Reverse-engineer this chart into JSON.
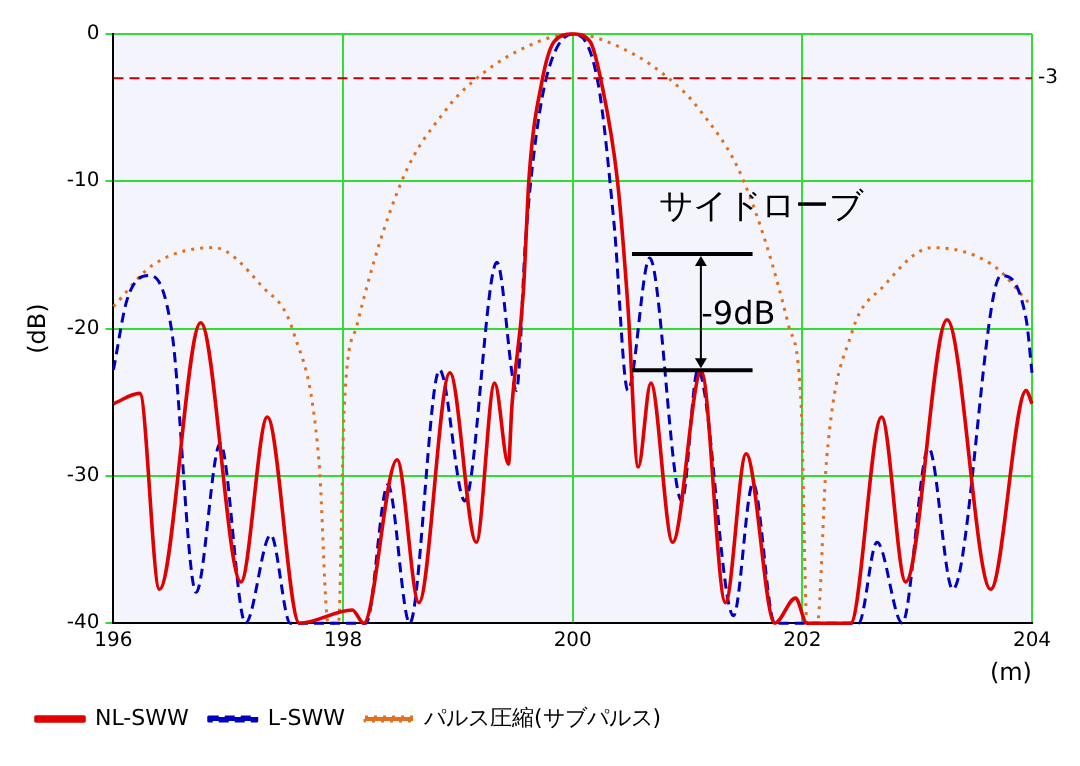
{
  "chart_data": {
    "type": "line",
    "ylabel": "(dB)",
    "xlabel": "(m)",
    "xlim": [
      196,
      204
    ],
    "ylim": [
      -40,
      0
    ],
    "xticks": [
      196,
      198,
      200,
      202,
      204
    ],
    "yticks": [
      0,
      -10,
      -20,
      -30,
      -40
    ],
    "grid": true,
    "legend": "bottom left",
    "marker": "none",
    "series": [
      {
        "name": "NL-SWW",
        "color": "#e00000",
        "line_style": "solid",
        "x": [
          196,
          196.23,
          196.4,
          196.76,
          197.11,
          197.34,
          197.62,
          198.08,
          198.18,
          198.47,
          198.66,
          198.93,
          199.16,
          199.32,
          199.44,
          199.47,
          199.57,
          199.62,
          199.73,
          199.84,
          200,
          200.15,
          200.25,
          200.39,
          200.48,
          200.57,
          200.68,
          200.87,
          201.12,
          201.33,
          201.51,
          201.76,
          201.94,
          202.04,
          202.42,
          202.69,
          202.9,
          203.26,
          203.64,
          203.95,
          204
        ],
        "values": [
          -25.1,
          -24.4,
          -37.7,
          -19.6,
          -37.2,
          -26,
          -40,
          -39.1,
          -40,
          -28.9,
          -38.6,
          -23,
          -34.5,
          -23.7,
          -29.2,
          -25.3,
          -17.5,
          -9.7,
          -3.3,
          -0.5,
          0,
          -0.5,
          -3.3,
          -10,
          -18.4,
          -29.4,
          -23.7,
          -34.5,
          -22.9,
          -38.6,
          -28.5,
          -40,
          -38.3,
          -40,
          -40,
          -26,
          -37.2,
          -19.4,
          -37.7,
          -24.2,
          -25.1
        ]
      },
      {
        "name": "L-SWW",
        "color": "#0000c0",
        "line_style": "dashed",
        "x": [
          196,
          196.12,
          196.32,
          196.51,
          196.72,
          196.93,
          197.15,
          197.37,
          197.54,
          198.2,
          198.39,
          198.58,
          198.84,
          199.06,
          199.34,
          199.51,
          199.59,
          199.68,
          199.79,
          200,
          200.22,
          200.36,
          200.48,
          200.67,
          200.95,
          201.09,
          201.4,
          201.57,
          201.76,
          202.49,
          202.65,
          202.87,
          203.1,
          203.31,
          203.73,
          203.95,
          204
        ],
        "values": [
          -22.8,
          -18,
          -16.4,
          -20.3,
          -37.9,
          -27.8,
          -40,
          -34,
          -40,
          -40,
          -30.6,
          -40,
          -22.8,
          -31.7,
          -15.5,
          -24.2,
          -13.9,
          -7,
          -2.4,
          0,
          -3.3,
          -12.9,
          -24.2,
          -15.2,
          -31.7,
          -22.8,
          -39.5,
          -30.5,
          -40,
          -40,
          -34.5,
          -40,
          -28.1,
          -37.7,
          -16.4,
          -19.4,
          -23
        ]
      },
      {
        "name": "パルス圧縮(サブパルス)",
        "color": "#e07020",
        "line_style": "dotted",
        "x": [
          196,
          196.34,
          196.87,
          197.29,
          197.57,
          197.79,
          197.87,
          197.96,
          198.01,
          198.12,
          198.51,
          198.9,
          199.12,
          199.51,
          200,
          200.49,
          200.88,
          201.1,
          201.49,
          201.88,
          201.99,
          202.04,
          202.13,
          202.21,
          202.43,
          202.71,
          203.13,
          203.66,
          204
        ],
        "values": [
          -18.5,
          -15.7,
          -14.5,
          -17.1,
          -20.3,
          -29,
          -40,
          -40,
          -25.3,
          -19.8,
          -10,
          -5.1,
          -3.3,
          -1.2,
          0,
          -1.2,
          -3.3,
          -5.1,
          -10,
          -19.8,
          -25.3,
          -40,
          -40,
          -29,
          -20.3,
          -17.1,
          -14.5,
          -15.7,
          -18.5
        ]
      }
    ],
    "ref_lines": [
      {
        "axis": "y",
        "value": -3,
        "label": "-3",
        "color": "#c00000",
        "line_style": "dashed"
      }
    ],
    "annotations": [
      "サイドローブ",
      {
        "text": "-9dB",
        "x": 201.12,
        "y": -22.9
      }
    ]
  }
}
